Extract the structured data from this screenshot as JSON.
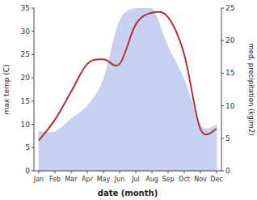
{
  "chart_data": {
    "type": "line",
    "categories": [
      "Jan",
      "Feb",
      "Mar",
      "Apr",
      "May",
      "Jun",
      "Jul",
      "Aug",
      "Sep",
      "Oct",
      "Nov",
      "Dec"
    ],
    "series": [
      {
        "type": "area",
        "axis": "y2",
        "color": "#c8d0f0",
        "values": [
          6.0,
          6.0,
          8.0,
          10.0,
          14.0,
          23.0,
          25.0,
          25.0,
          19.0,
          14.0,
          7.0,
          7.0
        ]
      },
      {
        "type": "line",
        "color": "#b03030",
        "values": [
          6.5,
          11.0,
          17.0,
          23.0,
          24.0,
          23.0,
          31.5,
          34.0,
          33.0,
          25.0,
          9.0,
          9.0
        ]
      }
    ],
    "xlabel": "date (month)",
    "ylabel": "max temp (C)",
    "y2label": "med. precipitation (kg/m2)",
    "ylim": [
      0,
      35
    ],
    "yticks": [
      0,
      5,
      10,
      15,
      20,
      25,
      30,
      35
    ],
    "y2lim": [
      0,
      25
    ],
    "y2ticks": [
      0,
      5,
      10,
      15,
      20,
      25
    ],
    "grid": false
  }
}
